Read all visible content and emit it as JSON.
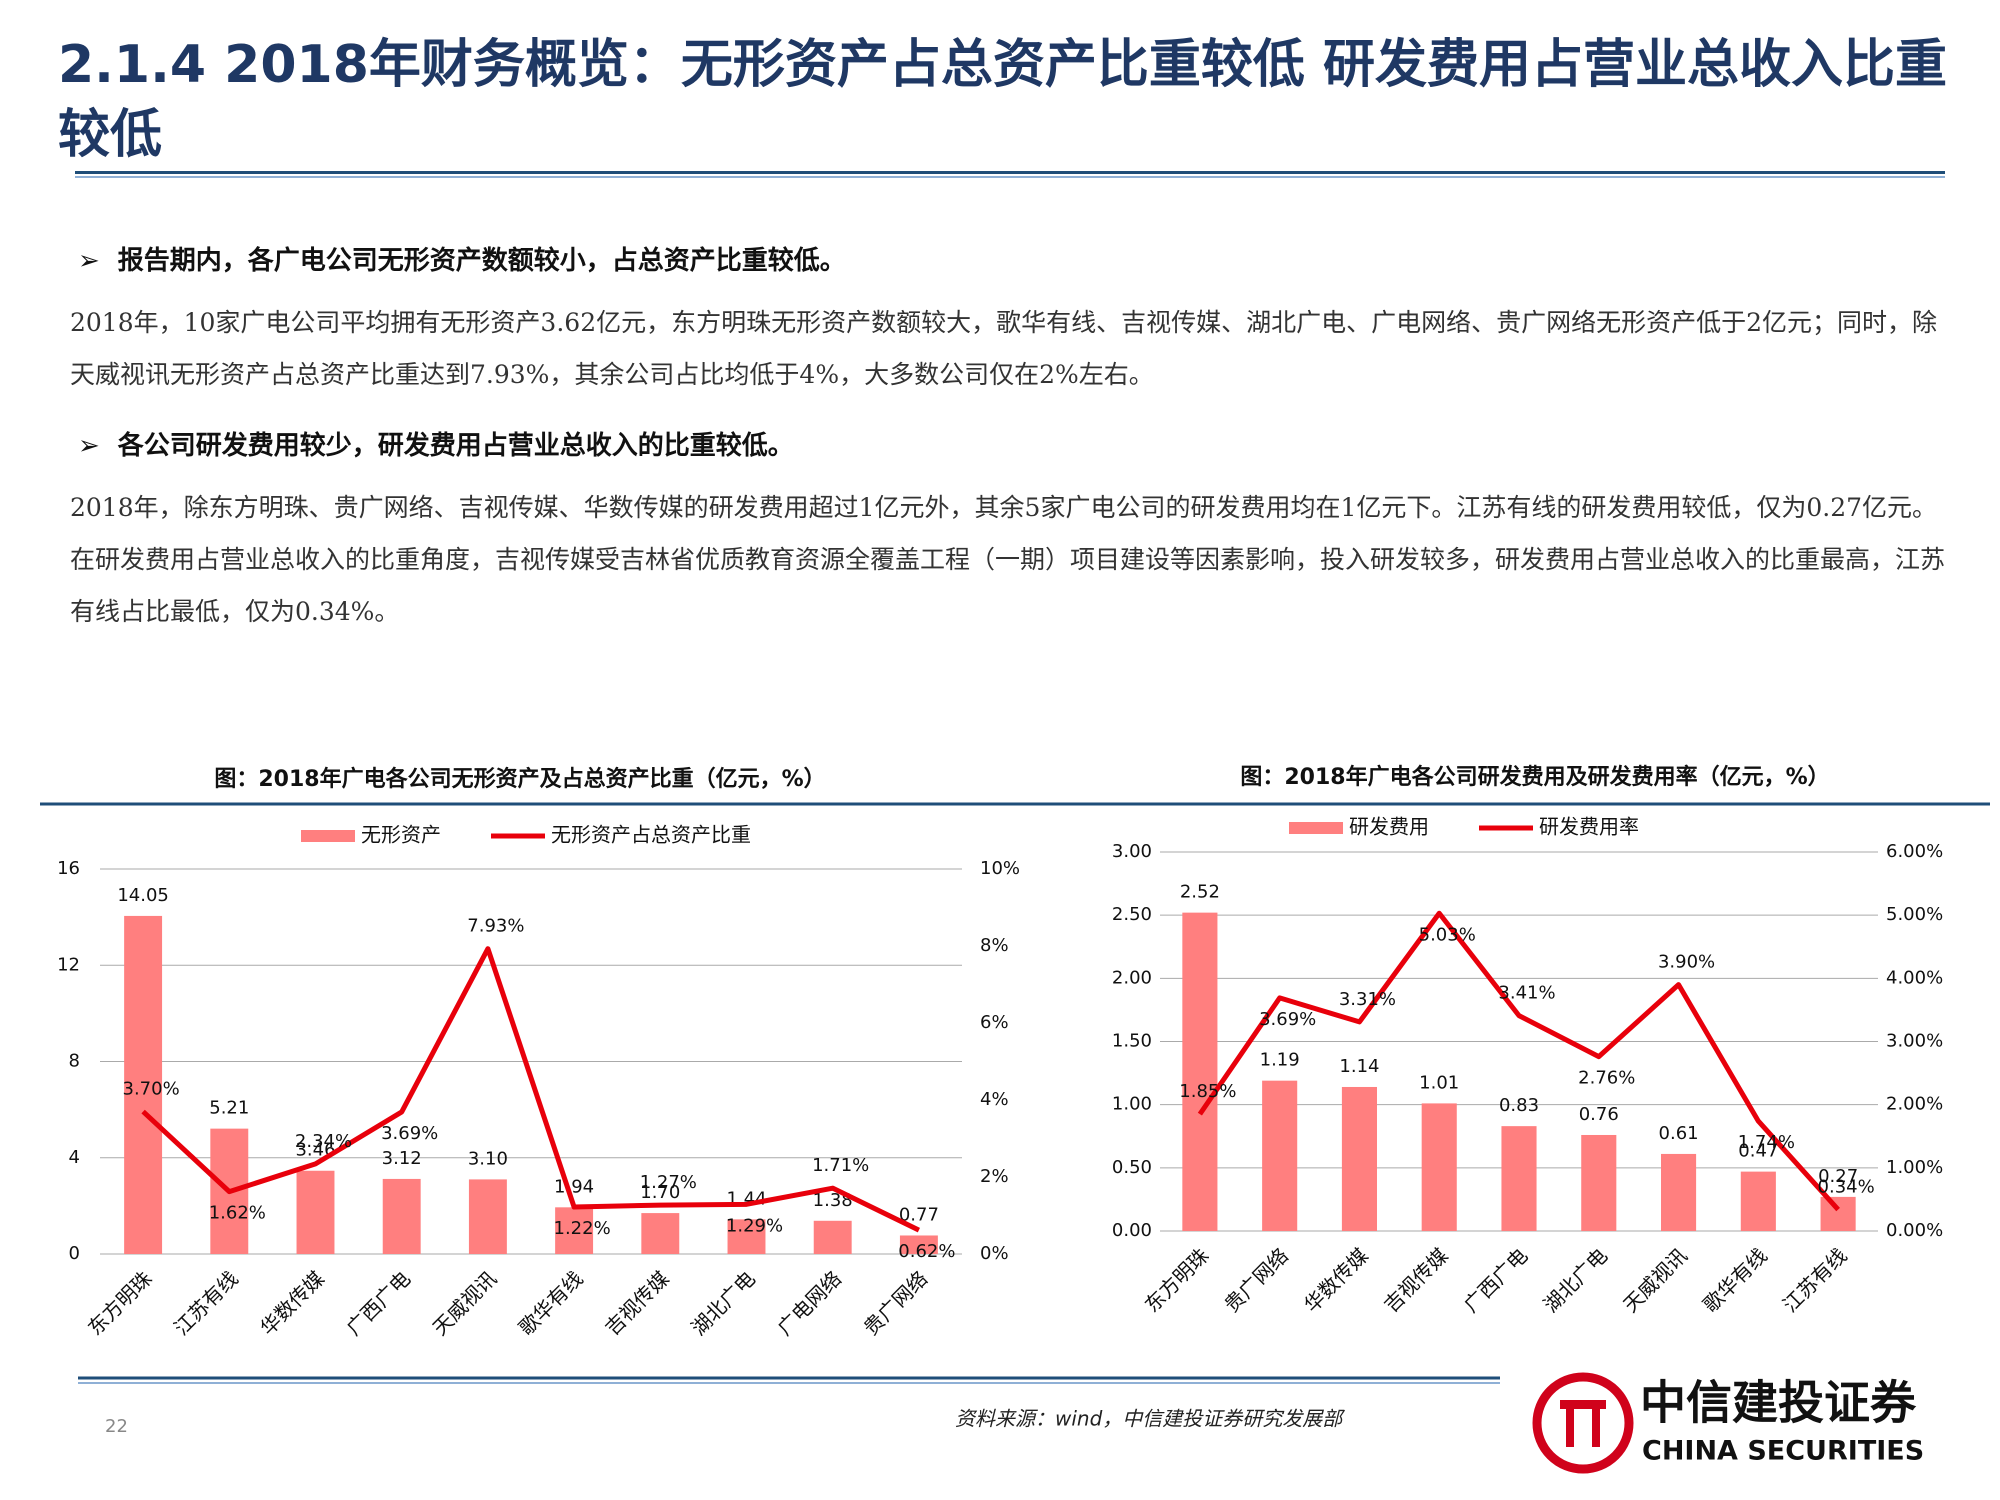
{
  "header": {
    "title": "2.1.4 2018年财务概览：无形资产占总资产比重较低 研发费用占营业总收入比重较低"
  },
  "bullets": [
    {
      "heading": "报告期内，各广电公司无形资产数额较小，占总资产比重较低。",
      "body": "2018年，10家广电公司平均拥有无形资产3.62亿元，东方明珠无形资产数额较大，歌华有线、吉视传媒、湖北广电、广电网络、贵广网络无形资产低于2亿元；同时，除天威视讯无形资产占总资产比重达到7.93%，其余公司占比均低于4%，大多数公司仅在2%左右。"
    },
    {
      "heading": "各公司研发费用较少，研发费用占营业总收入的比重较低。",
      "body": "2018年，除东方明珠、贵广网络、吉视传媒、华数传媒的研发费用超过1亿元外，其余5家广电公司的研发费用均在1亿元下。江苏有线的研发费用较低，仅为0.27亿元。在研发费用占营业总收入的比重角度，吉视传媒受吉林省优质教育资源全覆盖工程（一期）项目建设等因素影响，投入研发较多，研发费用占营业总收入的比重最高，江苏有线占比最低，仅为0.34%。"
    }
  ],
  "chart_data": [
    {
      "type": "combo",
      "title": "图：2018年广电各公司无形资产及占总资产比重（亿元，%）",
      "categories": [
        "东方明珠",
        "江苏有线",
        "华数传媒",
        "广西广电",
        "天威视讯",
        "歌华有线",
        "吉视传媒",
        "湖北广电",
        "广电网络",
        "贵广网络"
      ],
      "series": [
        {
          "name": "无形资产",
          "type": "bar",
          "color": "#ff7f7f",
          "values": [
            14.05,
            5.21,
            3.46,
            3.12,
            3.1,
            1.94,
            1.7,
            1.44,
            1.38,
            0.77
          ],
          "value_labels": [
            "14.05",
            "5.21",
            "3.46",
            "3.12",
            "3.10",
            "1.94",
            "1.70",
            "1.44",
            "1.38",
            "0.77"
          ]
        },
        {
          "name": "无形资产占总资产比重",
          "type": "line",
          "axis": "y2",
          "color": "#e8000b",
          "values": [
            3.7,
            1.62,
            2.34,
            3.69,
            7.93,
            1.22,
            1.27,
            1.29,
            1.71,
            0.62
          ],
          "value_labels": [
            "3.70%",
            "1.62%",
            "2.34%",
            "3.69%",
            "7.93%",
            "1.22%",
            "1.27%",
            "1.29%",
            "1.71%",
            "0.62%"
          ]
        }
      ],
      "ylim": [
        0,
        16
      ],
      "yticks": [
        0,
        4,
        8,
        12,
        16
      ],
      "y2lim": [
        0,
        10
      ],
      "y2ticks": [
        {
          "value": 0,
          "label": "0%"
        },
        {
          "value": 2,
          "label": "2%"
        },
        {
          "value": 4,
          "label": "4%"
        },
        {
          "value": 6,
          "label": "6%"
        },
        {
          "value": 8,
          "label": "8%"
        },
        {
          "value": 10,
          "label": "10%"
        }
      ],
      "grid": true,
      "legend": "top"
    },
    {
      "type": "combo",
      "title": "图：2018年广电各公司研发费用及研发费用率（亿元，%）",
      "categories": [
        "东方明珠",
        "贵广网络",
        "华数传媒",
        "吉视传媒",
        "广西广电",
        "湖北广电",
        "天威视讯",
        "歌华有线",
        "江苏有线"
      ],
      "series": [
        {
          "name": "研发费用",
          "type": "bar",
          "color": "#ff7f7f",
          "values": [
            2.52,
            1.19,
            1.14,
            1.01,
            0.83,
            0.76,
            0.61,
            0.47,
            0.27
          ]
        },
        {
          "name": "研发费用率",
          "type": "line",
          "axis": "y2",
          "color": "#e8000b",
          "values": [
            1.85,
            3.69,
            3.31,
            5.03,
            3.41,
            2.76,
            3.9,
            1.74,
            0.34
          ],
          "value_labels": [
            "1.85%",
            "3.69%",
            "3.31%",
            "5.03%",
            "3.41%",
            "2.76%",
            "3.90%",
            "1.74%",
            "0.34%"
          ]
        }
      ],
      "ylim": [
        0,
        3
      ],
      "yticks": [
        {
          "value": 0,
          "label": "0.00"
        },
        {
          "value": 0.5,
          "label": "0.50"
        },
        {
          "value": 1,
          "label": "1.00"
        },
        {
          "value": 1.5,
          "label": "1.50"
        },
        {
          "value": 2,
          "label": "2.00"
        },
        {
          "value": 2.5,
          "label": "2.50"
        },
        {
          "value": 3,
          "label": "3.00"
        }
      ],
      "y2lim": [
        0,
        6
      ],
      "y2ticks": [
        {
          "value": 0,
          "label": "0.00%"
        },
        {
          "value": 1,
          "label": "1.00%"
        },
        {
          "value": 2,
          "label": "2.00%"
        },
        {
          "value": 3,
          "label": "3.00%"
        },
        {
          "value": 4,
          "label": "4.00%"
        },
        {
          "value": 5,
          "label": "5.00%"
        },
        {
          "value": 6,
          "label": "6.00%"
        }
      ],
      "grid": true,
      "legend": "top"
    }
  ],
  "footer": {
    "source": "资料来源：wind，中信建投证券研究发展部",
    "page": "22",
    "logo_cn": "中信建投证券",
    "logo_en": "CHINA SECURITIES"
  }
}
